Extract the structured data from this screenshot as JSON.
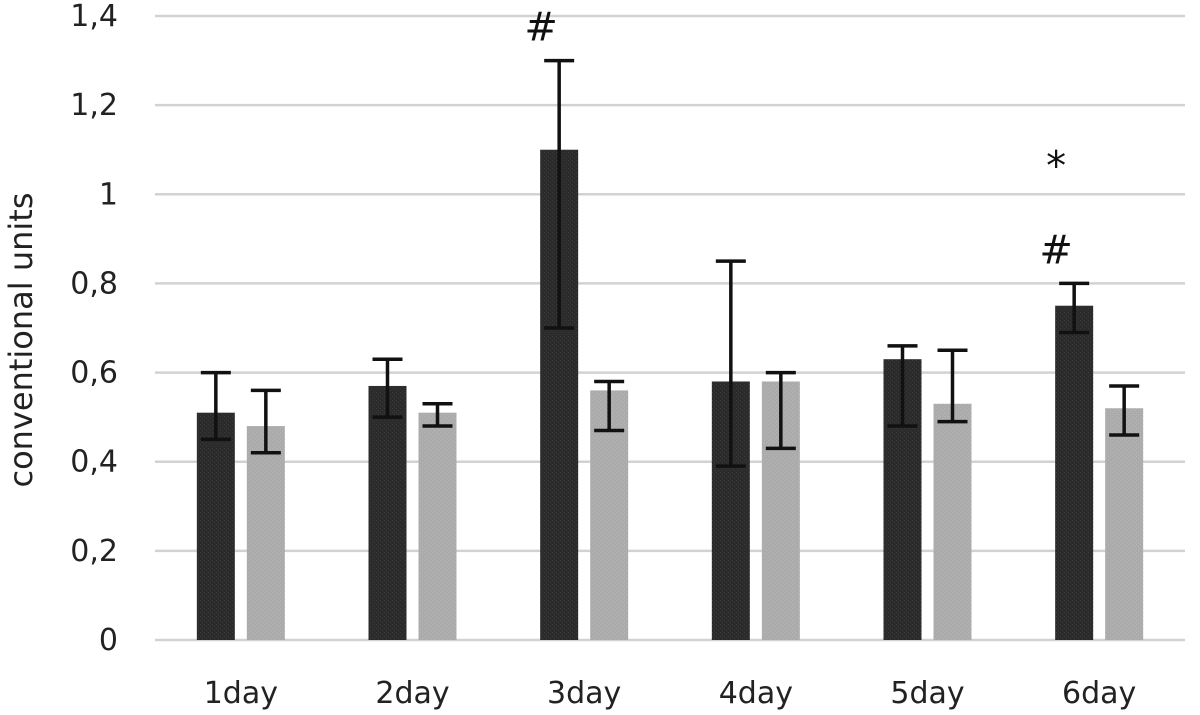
{
  "chart_data": {
    "type": "bar",
    "title": "",
    "xlabel": "",
    "ylabel": "conventional units",
    "categories": [
      "1day",
      "2day",
      "3day",
      "4day",
      "5day",
      "6day"
    ],
    "ylim": [
      0,
      1.4
    ],
    "yticks": [
      0,
      0.2,
      0.4,
      0.6,
      0.8,
      1,
      1.2,
      1.4
    ],
    "ytick_labels": [
      "0",
      "0,2",
      "0,4",
      "0,6",
      "0,8",
      "1",
      "1,2",
      "1,4"
    ],
    "grid": true,
    "legend": "none",
    "series": [
      {
        "color": "#2b2b2b",
        "values": [
          0.51,
          0.57,
          1.1,
          0.58,
          0.63,
          0.75
        ],
        "error_low": [
          0.45,
          0.5,
          0.7,
          0.39,
          0.48,
          0.69
        ],
        "error_high": [
          0.6,
          0.63,
          1.3,
          0.85,
          0.66,
          0.8
        ]
      },
      {
        "color": "#ababab",
        "values": [
          0.48,
          0.51,
          0.56,
          0.58,
          0.53,
          0.52
        ],
        "error_low": [
          0.42,
          0.48,
          0.47,
          0.43,
          0.49,
          0.46
        ],
        "error_high": [
          0.56,
          0.53,
          0.58,
          0.6,
          0.65,
          0.57
        ]
      }
    ],
    "annotations": [
      {
        "category": "3day",
        "series": 0,
        "marks": [
          "*",
          "#"
        ]
      },
      {
        "category": "6day",
        "series": 0,
        "marks": [
          "*",
          "#"
        ]
      }
    ]
  }
}
